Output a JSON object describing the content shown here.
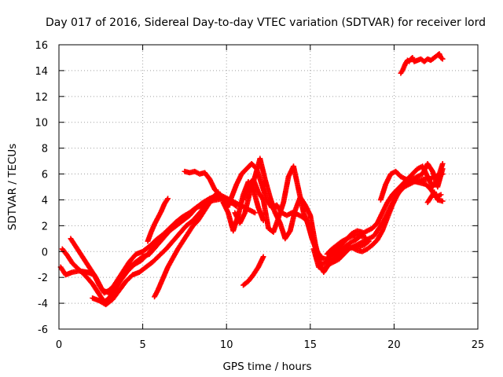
{
  "chart_data": {
    "type": "scatter",
    "title": "Day 017 of 2016, Sidereal Day-to-day VTEC variation (SDTVAR) for receiver lord",
    "xlabel": "GPS time / hours",
    "ylabel": "SDTVAR / TECUs",
    "xlim": [
      0,
      25
    ],
    "ylim": [
      -6,
      16
    ],
    "xticks": [
      "0",
      "5",
      "10",
      "15",
      "20",
      "25"
    ],
    "yticks": [
      "-6",
      "-4",
      "-2",
      "0",
      "2",
      "4",
      "6",
      "8",
      "10",
      "12",
      "14",
      "16"
    ],
    "grid": true,
    "legend": "none",
    "marker": "plus",
    "color": "#ff0000",
    "series": [
      {
        "x": [
          0.2,
          0.5,
          0.8,
          1.2,
          1.6,
          2.0,
          2.4,
          2.7,
          3.0,
          3.3,
          3.7,
          4.1,
          4.5,
          4.9,
          5.3,
          5.7,
          6.1,
          6.5,
          6.9,
          7.3,
          7.8,
          8.2,
          8.6,
          9.0,
          9.4,
          9.8,
          10.2,
          10.6
        ],
        "y": [
          0.2,
          -0.3,
          -0.9,
          -1.4,
          -1.9,
          -2.5,
          -3.3,
          -3.9,
          -3.6,
          -3.0,
          -2.2,
          -1.5,
          -1.0,
          -0.7,
          -0.2,
          0.4,
          1.0,
          1.6,
          2.1,
          2.6,
          3.0,
          3.4,
          3.6,
          3.9,
          4.0,
          4.1,
          3.9,
          3.5
        ]
      },
      {
        "x": [
          0.1,
          0.4,
          0.8,
          1.2,
          1.7,
          2.1,
          2.4,
          2.7,
          3.0,
          3.4,
          3.8,
          4.2,
          4.6,
          5.0,
          5.4,
          5.8,
          6.2,
          6.6,
          7.0,
          7.4,
          7.8,
          8.2,
          8.6,
          9.0,
          9.4,
          9.8,
          10.2
        ],
        "y": [
          -1.2,
          -1.8,
          -1.6,
          -1.5,
          -1.6,
          -1.8,
          -2.6,
          -3.2,
          -3.0,
          -2.5,
          -1.8,
          -1.2,
          -0.8,
          -0.4,
          -0.2,
          0.4,
          1.0,
          1.6,
          2.0,
          2.4,
          2.8,
          3.4,
          3.8,
          4.1,
          4.3,
          4.0,
          3.6
        ]
      },
      {
        "x": [
          0.7,
          1.0,
          1.4,
          1.8,
          2.2,
          2.6,
          3.0,
          3.4,
          3.8,
          4.2,
          4.6,
          5.0,
          5.4,
          5.8,
          6.2,
          6.6,
          7.0,
          7.4,
          7.8,
          8.2,
          8.6,
          9.0,
          9.4,
          9.8
        ],
        "y": [
          1.0,
          0.4,
          -0.4,
          -1.2,
          -2.0,
          -3.0,
          -3.2,
          -2.4,
          -1.6,
          -0.8,
          -0.2,
          0.0,
          0.4,
          0.9,
          1.3,
          1.8,
          2.3,
          2.7,
          3.0,
          3.4,
          3.7,
          4.1,
          4.3,
          4.1
        ]
      },
      {
        "x": [
          2.0,
          2.4,
          2.8,
          3.2,
          3.6,
          4.0,
          4.4,
          4.8,
          5.2,
          5.6,
          6.0,
          6.4,
          6.8,
          7.2,
          7.6,
          8.0,
          8.4,
          8.8,
          9.2
        ],
        "y": [
          -3.6,
          -3.8,
          -4.1,
          -3.7,
          -3.0,
          -2.3,
          -1.8,
          -1.6,
          -1.2,
          -0.8,
          -0.3,
          0.2,
          0.8,
          1.4,
          2.0,
          2.4,
          3.0,
          3.6,
          4.0
        ]
      },
      {
        "x": [
          5.7,
          5.9,
          6.1,
          6.3,
          6.5,
          6.8,
          7.1,
          7.4,
          7.7,
          8.0,
          8.3,
          8.6,
          8.9,
          9.2,
          9.5
        ],
        "y": [
          -3.5,
          -3.0,
          -2.4,
          -1.8,
          -1.2,
          -0.5,
          0.2,
          0.8,
          1.4,
          2.0,
          2.4,
          3.0,
          3.6,
          4.2,
          4.6
        ]
      },
      {
        "x": [
          5.3,
          5.5,
          5.7,
          5.9,
          6.1,
          6.3,
          6.5
        ],
        "y": [
          0.8,
          1.5,
          2.1,
          2.6,
          3.1,
          3.7,
          4.1
        ]
      },
      {
        "x": [
          7.5,
          7.8,
          8.1,
          8.4,
          8.7,
          9.0,
          9.3,
          9.6,
          9.9,
          10.2,
          10.5,
          10.8,
          11.1,
          11.4,
          11.7
        ],
        "y": [
          6.2,
          6.1,
          6.2,
          6.0,
          6.1,
          5.6,
          4.8,
          4.4,
          4.2,
          4.0,
          3.8,
          3.6,
          3.4,
          3.2,
          3.0
        ]
      },
      {
        "x": [
          10.0,
          10.3,
          10.6,
          10.9,
          11.2,
          11.5,
          11.8,
          12.1,
          12.4,
          12.7,
          13.0,
          13.3,
          13.6,
          13.9,
          14.2,
          14.5,
          14.8,
          15.1,
          15.4,
          15.7,
          16.0,
          16.3,
          16.6,
          16.9,
          17.2,
          17.5,
          17.8,
          18.1
        ],
        "y": [
          3.4,
          4.2,
          5.2,
          6.0,
          6.4,
          6.8,
          6.4,
          5.2,
          4.0,
          3.4,
          3.6,
          3.0,
          2.8,
          3.0,
          2.9,
          2.7,
          2.4,
          1.0,
          0.0,
          -0.5,
          -0.6,
          -0.2,
          0.2,
          0.6,
          1.0,
          1.4,
          1.6,
          1.5
        ]
      },
      {
        "x": [
          10.5,
          10.8,
          11.1,
          11.4,
          11.7,
          12.0,
          12.3,
          12.6,
          12.9,
          13.2,
          13.5,
          13.8,
          14.1,
          14.4,
          14.7,
          15.0,
          15.3,
          15.6,
          15.9,
          16.2,
          16.5,
          16.8,
          17.1,
          17.4,
          17.7,
          18.0,
          18.3
        ],
        "y": [
          3.0,
          2.2,
          3.0,
          4.6,
          5.8,
          7.2,
          5.6,
          4.2,
          3.0,
          2.2,
          1.0,
          1.6,
          3.2,
          4.2,
          3.6,
          2.8,
          0.6,
          -1.0,
          -0.9,
          -0.4,
          -0.2,
          0.2,
          0.4,
          0.7,
          0.9,
          1.2,
          1.1
        ]
      },
      {
        "x": [
          11.0,
          11.3,
          11.6,
          11.9,
          12.2,
          12.5,
          12.8,
          13.1,
          13.4,
          13.7,
          14.0,
          14.3,
          14.6,
          14.9,
          15.2,
          15.5,
          15.8,
          16.1,
          16.4,
          16.7,
          17.0,
          17.3,
          17.6,
          17.9,
          18.2,
          18.5
        ],
        "y": [
          4.0,
          5.0,
          5.6,
          4.6,
          4.0,
          1.8,
          1.5,
          2.6,
          3.8,
          5.8,
          6.6,
          4.8,
          3.0,
          2.0,
          0.8,
          -0.8,
          -1.6,
          -1.0,
          -0.6,
          -0.2,
          0.1,
          0.3,
          0.3,
          0.4,
          0.5,
          0.8
        ]
      },
      {
        "x": [
          9.8,
          10.1,
          10.4,
          10.7,
          11.0,
          11.3,
          11.6,
          11.9,
          12.2
        ],
        "y": [
          3.8,
          3.0,
          1.6,
          2.8,
          4.4,
          5.4,
          4.8,
          3.4,
          2.4
        ]
      },
      {
        "x": [
          11.0,
          11.3,
          11.6,
          11.9,
          12.2
        ],
        "y": [
          -2.6,
          -2.3,
          -1.8,
          -1.2,
          -0.4
        ]
      },
      {
        "x": [
          15.2,
          15.5,
          15.8,
          16.1,
          16.4,
          16.7,
          17.0,
          17.3,
          17.6,
          17.9,
          18.2,
          18.5,
          18.8,
          19.1,
          19.4,
          19.7,
          20.0,
          20.3,
          20.6,
          20.9,
          21.2,
          21.5,
          21.8,
          22.1,
          22.4,
          22.7,
          22.9
        ],
        "y": [
          0.2,
          -1.2,
          -1.4,
          -1.0,
          -0.8,
          -0.6,
          -0.2,
          0.2,
          0.4,
          0.6,
          0.8,
          1.0,
          1.2,
          1.8,
          2.4,
          3.2,
          4.0,
          4.6,
          5.0,
          5.2,
          5.4,
          5.5,
          5.6,
          5.6,
          5.8,
          5.9,
          6.0
        ]
      },
      {
        "x": [
          16.0,
          16.3,
          16.6,
          16.9,
          17.2,
          17.5,
          17.8,
          18.1,
          18.4,
          18.7,
          19.0,
          19.3,
          19.6,
          19.9,
          20.2,
          20.5,
          20.8,
          21.1,
          21.4,
          21.7,
          22.0,
          22.3,
          22.6,
          22.9
        ],
        "y": [
          -0.2,
          0.2,
          0.5,
          0.8,
          1.0,
          1.2,
          1.3,
          1.4,
          1.6,
          1.8,
          2.2,
          3.0,
          3.8,
          4.4,
          4.8,
          5.2,
          5.6,
          6.0,
          6.4,
          6.6,
          5.8,
          5.0,
          5.6,
          6.8
        ]
      },
      {
        "x": [
          17.5,
          17.8,
          18.1,
          18.4,
          18.7,
          19.0,
          19.3,
          19.6,
          19.9,
          20.2,
          20.5,
          20.8,
          21.1,
          21.4,
          21.7,
          22.0,
          22.3,
          22.6,
          22.9
        ],
        "y": [
          0.3,
          0.1,
          0.0,
          0.2,
          0.5,
          0.9,
          1.6,
          2.6,
          3.6,
          4.4,
          5.0,
          5.4,
          5.6,
          5.8,
          6.0,
          6.8,
          6.2,
          5.0,
          6.4
        ]
      },
      {
        "x": [
          19.2,
          19.5,
          19.8,
          20.1,
          20.4,
          20.7,
          21.0,
          21.3,
          21.6,
          21.9,
          22.2,
          22.5,
          22.8
        ],
        "y": [
          4.0,
          5.2,
          6.0,
          6.2,
          5.8,
          5.6,
          5.5,
          5.4,
          5.3,
          5.2,
          4.8,
          4.2,
          4.4
        ]
      },
      {
        "x": [
          22.0,
          22.2,
          22.4,
          22.6,
          22.9
        ],
        "y": [
          3.8,
          4.2,
          4.6,
          4.0,
          3.9
        ]
      },
      {
        "x": [
          20.4,
          20.5,
          20.6,
          20.7,
          20.8,
          20.9,
          21.0,
          21.1,
          21.2,
          21.4,
          21.6,
          21.8,
          22.0,
          22.2,
          22.4,
          22.6,
          22.7,
          22.8,
          22.9
        ],
        "y": [
          13.8,
          14.0,
          14.3,
          14.6,
          14.8,
          14.7,
          14.9,
          15.0,
          14.7,
          14.8,
          14.9,
          14.7,
          14.9,
          14.8,
          15.0,
          15.2,
          15.3,
          15.0,
          14.9
        ]
      }
    ]
  }
}
